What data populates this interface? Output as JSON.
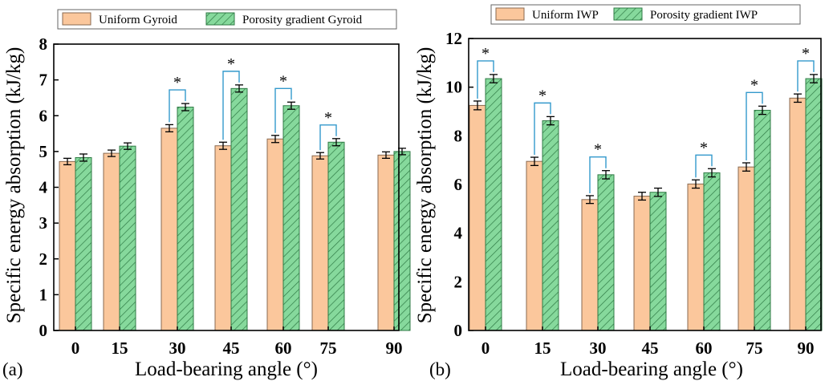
{
  "colors": {
    "uniform_fill": "#fbc79c",
    "uniform_stroke": "#8a6a50",
    "gradient_fill": "#86d99c",
    "gradient_stroke": "#2f7a45",
    "hatch": "#2f7a45",
    "bracket": "#3399cc",
    "axis": "#000000"
  },
  "chart_data": [
    {
      "type": "bar",
      "panel": "(a)",
      "xlabel": "Load-bearing angle (°)",
      "ylabel": "Specific energy absorption (kJ/kg)",
      "ylim": [
        0,
        8
      ],
      "yticks": [
        "0",
        "1",
        "2",
        "3",
        "4",
        "5",
        "6",
        "7",
        "8"
      ],
      "categories": [
        "0",
        "15",
        "30",
        "45",
        "60",
        "75",
        "90"
      ],
      "series": [
        {
          "name": "Uniform Gyroid",
          "values": [
            4.72,
            4.95,
            5.65,
            5.16,
            5.35,
            4.88,
            4.9
          ],
          "errors": [
            0.09,
            0.09,
            0.1,
            0.1,
            0.1,
            0.09,
            0.09
          ]
        },
        {
          "name": "Porosity gradient Gyroid",
          "values": [
            4.83,
            5.15,
            6.24,
            6.76,
            6.28,
            5.26,
            5.0
          ],
          "errors": [
            0.1,
            0.09,
            0.1,
            0.1,
            0.1,
            0.1,
            0.09
          ]
        }
      ],
      "significance": [
        false,
        false,
        true,
        true,
        true,
        true,
        false
      ],
      "star_label": "*",
      "legend_position": "top"
    },
    {
      "type": "bar",
      "panel": "(b)",
      "xlabel": "Load-bearing angle (°)",
      "ylabel": "Specific energy absorption (kJ/kg)",
      "ylim": [
        0,
        12
      ],
      "yticks": [
        "0",
        "2",
        "4",
        "6",
        "8",
        "10",
        "12"
      ],
      "categories": [
        "0",
        "15",
        "30",
        "45",
        "60",
        "75",
        "90"
      ],
      "series": [
        {
          "name": "Uniform IWP",
          "values": [
            9.25,
            6.95,
            5.38,
            5.52,
            6.02,
            6.72,
            9.55
          ],
          "errors": [
            0.18,
            0.17,
            0.16,
            0.16,
            0.17,
            0.17,
            0.17
          ]
        },
        {
          "name": "Porosity gradient IWP",
          "values": [
            10.35,
            8.62,
            6.4,
            5.68,
            6.48,
            9.05,
            10.35
          ],
          "errors": [
            0.17,
            0.17,
            0.17,
            0.17,
            0.17,
            0.17,
            0.17
          ]
        }
      ],
      "significance": [
        true,
        true,
        true,
        false,
        true,
        true,
        true
      ],
      "star_label": "*",
      "legend_position": "top"
    }
  ]
}
